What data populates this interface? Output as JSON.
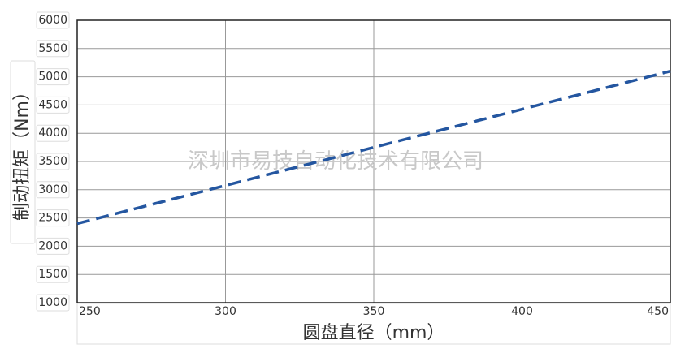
{
  "chart_data": {
    "type": "line",
    "x_label": "圆盘直径（mm）",
    "y_label": "制动扭矩（Nm）",
    "watermark": "深圳市易技自动化技术有限公司",
    "x": [
      250,
      450
    ],
    "series": [
      {
        "color": "#2456a0",
        "values": [
          2400,
          5100
        ]
      }
    ],
    "xlim": [
      250,
      450
    ],
    "xticks": [
      250,
      300,
      350,
      400,
      450
    ],
    "ylim": [
      1000,
      6000
    ],
    "yticks": [
      1000,
      1500,
      2000,
      2500,
      3000,
      3500,
      4000,
      4500,
      5000,
      5500,
      6000
    ],
    "grid": true
  }
}
